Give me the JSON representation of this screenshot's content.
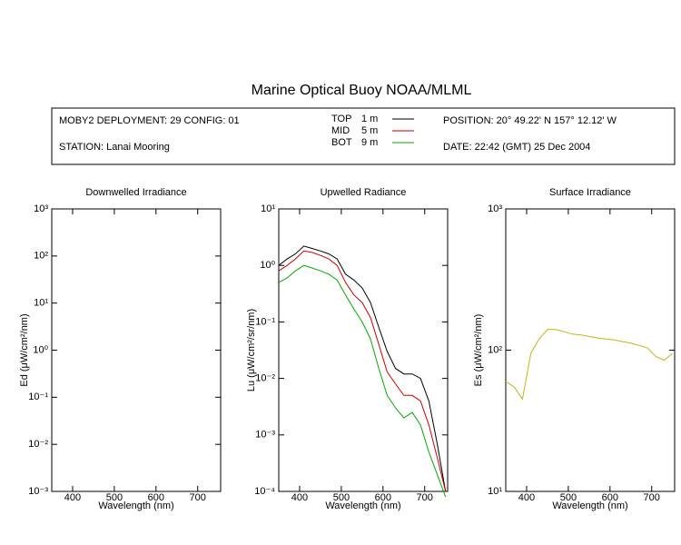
{
  "title": "Marine Optical Buoy NOAA/MLML",
  "info": {
    "deployment": "MOBY2 DEPLOYMENT: 29 CONFIG: 01",
    "station": "STATION: Lanai Mooring",
    "position": "POSITION: 20° 49.22' N   157° 12.12' W",
    "date": "DATE: 22:42 (GMT) 25 Dec 2004"
  },
  "chart_data": [
    {
      "type": "line",
      "title": "Downwelled Irradiance",
      "xlabel": "Wavelength (nm)",
      "ylabel": "Ed  (μW/cm²/nm)",
      "log_y": true,
      "xlim": [
        350,
        755
      ],
      "xticks": [
        400,
        500,
        600,
        700
      ],
      "ylim": [
        0.001,
        1000
      ],
      "yticks": [
        {
          "value": 0.001,
          "label": "10⁻³"
        },
        {
          "value": 0.01,
          "label": "10⁻²"
        },
        {
          "value": 0.1,
          "label": "10⁻¹"
        },
        {
          "value": 1,
          "label": "10⁰"
        },
        {
          "value": 10,
          "label": "10¹"
        },
        {
          "value": 100,
          "label": "10²"
        },
        {
          "value": 1000,
          "label": "10³"
        }
      ],
      "x": [],
      "series": []
    },
    {
      "type": "line",
      "title": "Upwelled Radiance",
      "xlabel": "Wavelength (nm)",
      "ylabel": "Lu  (μW/cm²/sr/nm)",
      "log_y": true,
      "xlim": [
        350,
        755
      ],
      "xticks": [
        400,
        500,
        600,
        700
      ],
      "ylim": [
        0.0001,
        10
      ],
      "yticks": [
        {
          "value": 0.0001,
          "label": "10⁻⁴"
        },
        {
          "value": 0.001,
          "label": "10⁻³"
        },
        {
          "value": 0.01,
          "label": "10⁻²"
        },
        {
          "value": 0.1,
          "label": "10⁻¹"
        },
        {
          "value": 1,
          "label": "10⁰"
        },
        {
          "value": 10,
          "label": "10¹"
        }
      ],
      "x": [
        350,
        370,
        390,
        410,
        430,
        450,
        470,
        490,
        510,
        530,
        550,
        570,
        590,
        610,
        630,
        650,
        670,
        690,
        710,
        730,
        750
      ],
      "series": [
        {
          "name": "TOP",
          "depth": "1 m",
          "color": "#000000",
          "values": [
            1.0,
            1.3,
            1.6,
            2.2,
            2.0,
            1.8,
            1.6,
            1.3,
            0.7,
            0.55,
            0.4,
            0.22,
            0.08,
            0.03,
            0.015,
            0.012,
            0.012,
            0.01,
            0.004,
            0.0007,
            0.0001
          ]
        },
        {
          "name": "MID",
          "depth": "5 m",
          "color": "#cc0000",
          "values": [
            0.8,
            1.0,
            1.3,
            1.8,
            1.7,
            1.5,
            1.3,
            1.0,
            0.5,
            0.3,
            0.22,
            0.12,
            0.04,
            0.013,
            0.008,
            0.005,
            0.005,
            0.004,
            0.0015,
            0.0004,
            0.0001
          ]
        },
        {
          "name": "BOT",
          "depth": "9 m",
          "color": "#00aa00",
          "values": [
            0.5,
            0.6,
            0.8,
            1.0,
            0.9,
            0.8,
            0.7,
            0.55,
            0.3,
            0.17,
            0.1,
            0.05,
            0.015,
            0.005,
            0.003,
            0.002,
            0.0025,
            0.0015,
            0.0005,
            0.0002,
            8e-05
          ]
        }
      ]
    },
    {
      "type": "line",
      "title": "Surface Irradiance",
      "xlabel": "Wavelength (nm)",
      "ylabel": "Es  (μW/cm²/nm)",
      "log_y": true,
      "xlim": [
        350,
        755
      ],
      "xticks": [
        400,
        500,
        600,
        700
      ],
      "ylim": [
        10,
        1000
      ],
      "yticks": [
        {
          "value": 10,
          "label": "10¹"
        },
        {
          "value": 100,
          "label": "10²"
        },
        {
          "value": 1000,
          "label": "10³"
        }
      ],
      "x": [
        350,
        370,
        390,
        410,
        430,
        450,
        470,
        490,
        510,
        530,
        550,
        570,
        590,
        610,
        630,
        650,
        670,
        690,
        710,
        730,
        750
      ],
      "series": [
        {
          "color": "#c4b416",
          "values": [
            60,
            55,
            45,
            95,
            120,
            140,
            140,
            135,
            130,
            128,
            125,
            122,
            120,
            118,
            115,
            112,
            108,
            104,
            90,
            85,
            95
          ]
        }
      ]
    }
  ]
}
